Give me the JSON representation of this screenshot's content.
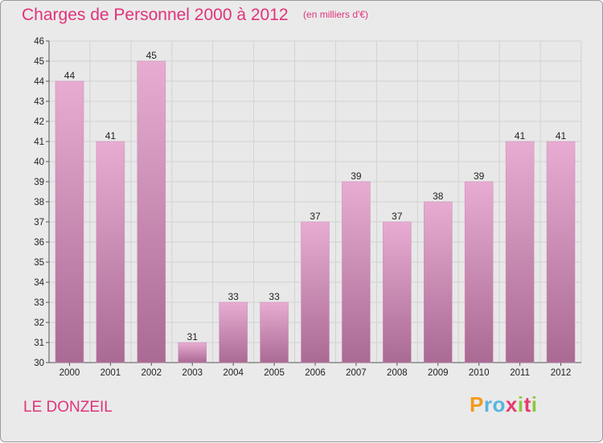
{
  "header": {
    "title": "Charges de Personnel 2000 à 2012",
    "subtitle": "(en milliers d'€)"
  },
  "footer": {
    "location": "LE DONZEIL",
    "brand_letters": [
      "P",
      "r",
      "o",
      "x",
      "i",
      "t",
      "i"
    ],
    "brand_colors": [
      "#f39a1c",
      "#5ab4e0",
      "#5ab4e0",
      "#e63b6f",
      "#8cc63e",
      "#e63b6f",
      "#8cc63e"
    ]
  },
  "chart_data": {
    "type": "bar",
    "title": "Charges de Personnel 2000 à 2012",
    "subtitle": "(en milliers d'€)",
    "categories": [
      "2000",
      "2001",
      "2002",
      "2003",
      "2004",
      "2005",
      "2006",
      "2007",
      "2008",
      "2009",
      "2010",
      "2011",
      "2012"
    ],
    "values": [
      44,
      41,
      45,
      31,
      33,
      33,
      37,
      39,
      37,
      38,
      39,
      41,
      41
    ],
    "xlabel": "",
    "ylabel": "",
    "ylim": [
      30,
      46
    ],
    "yticks": [
      30,
      31,
      32,
      33,
      34,
      35,
      36,
      37,
      38,
      39,
      40,
      41,
      42,
      43,
      44,
      45,
      46
    ],
    "grid": true,
    "bar_color_top": "#e8acd2",
    "bar_color_bottom": "#a96a93",
    "text_color": "#e0337a"
  }
}
